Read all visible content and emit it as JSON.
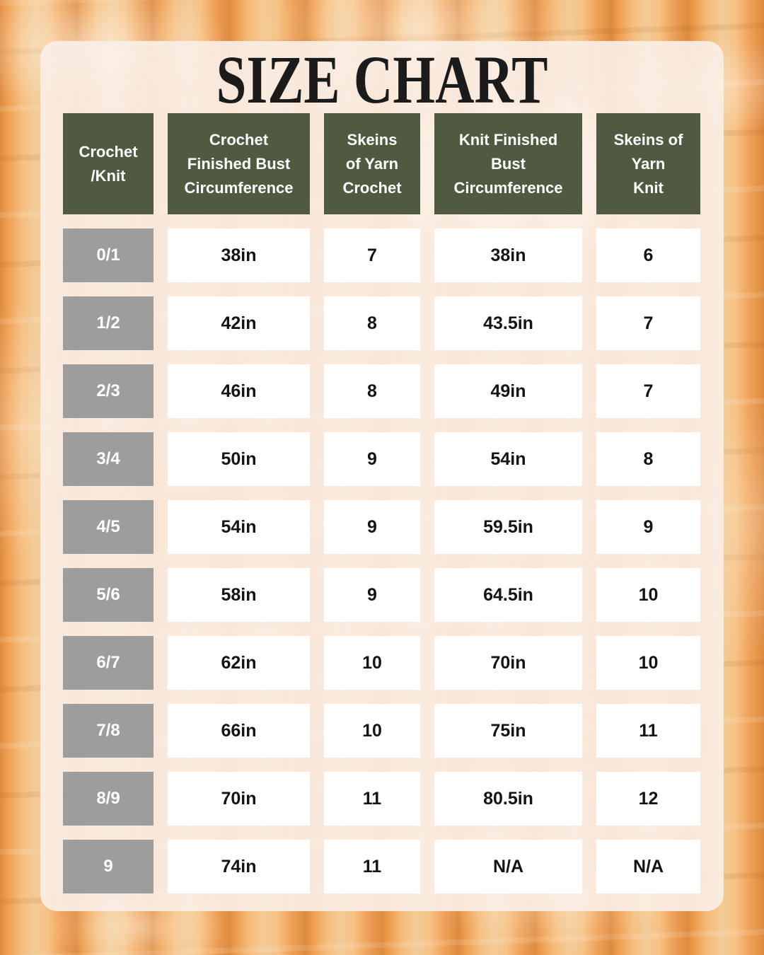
{
  "title": "SIZE CHART",
  "chart_data": {
    "type": "table",
    "title": "SIZE CHART",
    "columns": [
      "Crochet /Knit",
      "Crochet Finished Bust Circumference",
      "Skeins of Yarn Crochet",
      "Knit Finished Bust Circumference",
      "Skeins of Yarn Knit"
    ],
    "rows": [
      [
        "0/1",
        "38in",
        "7",
        "38in",
        "6"
      ],
      [
        "1/2",
        "42in",
        "8",
        "43.5in",
        "7"
      ],
      [
        "2/3",
        "46in",
        "8",
        "49in",
        "7"
      ],
      [
        "3/4",
        "50in",
        "9",
        "54in",
        "8"
      ],
      [
        "4/5",
        "54in",
        "9",
        "59.5in",
        "9"
      ],
      [
        "5/6",
        "58in",
        "9",
        "64.5in",
        "10"
      ],
      [
        "6/7",
        "62in",
        "10",
        "70in",
        "10"
      ],
      [
        "7/8",
        "66in",
        "10",
        "75in",
        "11"
      ],
      [
        "8/9",
        "70in",
        "11",
        "80.5in",
        "12"
      ],
      [
        "9",
        "74in",
        "11",
        "N/A",
        "N/A"
      ]
    ]
  },
  "display": {
    "header_lines": [
      "Crochet\n/Knit",
      "Crochet\nFinished Bust\nCircumference",
      "Skeins\nof Yarn\nCrochet",
      "Knit Finished\nBust\nCircumference",
      "Skeins of\nYarn\nKnit"
    ]
  },
  "colors": {
    "header_green": "#4f5a41",
    "size_label_gray": "#9d9d9d",
    "value_cell_white": "#ffffff",
    "panel_cream": "#f7eadd",
    "background_orange": "#eda55f",
    "background_rib_deep_orange": "#dd8a3e",
    "background_rib_light_tan": "#f3cb97",
    "title_text": "#1b1b1b",
    "value_text": "#141414"
  }
}
